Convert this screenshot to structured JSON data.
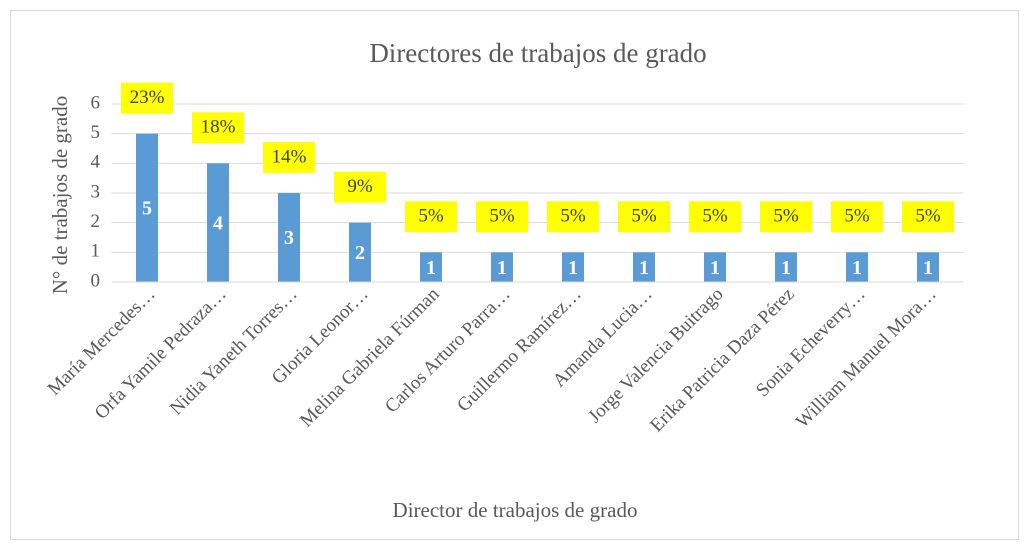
{
  "chart_data": {
    "type": "bar",
    "title": "Directores de  trabajos de grado",
    "x_label": "Director de trabajos de grado",
    "y_label": "N° de trabajos de grado",
    "categories": [
      "María Mercedes…",
      "Orfa Yamile Pedraza…",
      "Nidia Yaneth Torres…",
      "Gloria Leonor…",
      "Melina Gabriela Fúrman",
      "Carlos Arturo Parra…",
      "Guillermo Ramírez…",
      "Amanda Lucia…",
      "Jorge Valencia Buitrago",
      "Erika Patricia Daza Pérez",
      "Sonia Echeverry…",
      "William Manuel Mora…"
    ],
    "values": [
      5,
      4,
      3,
      2,
      1,
      1,
      1,
      1,
      1,
      1,
      1,
      1
    ],
    "share_labels": [
      "23%",
      "18%",
      "14%",
      "9%",
      "5%",
      "5%",
      "5%",
      "5%",
      "5%",
      "5%",
      "5%",
      "5%"
    ],
    "color": "#5b9bd5",
    "share_label_color": "#ffff00",
    "ylim": [
      0,
      6
    ],
    "yticks": [
      0,
      1,
      2,
      3,
      4,
      5,
      6
    ],
    "grid": true
  }
}
